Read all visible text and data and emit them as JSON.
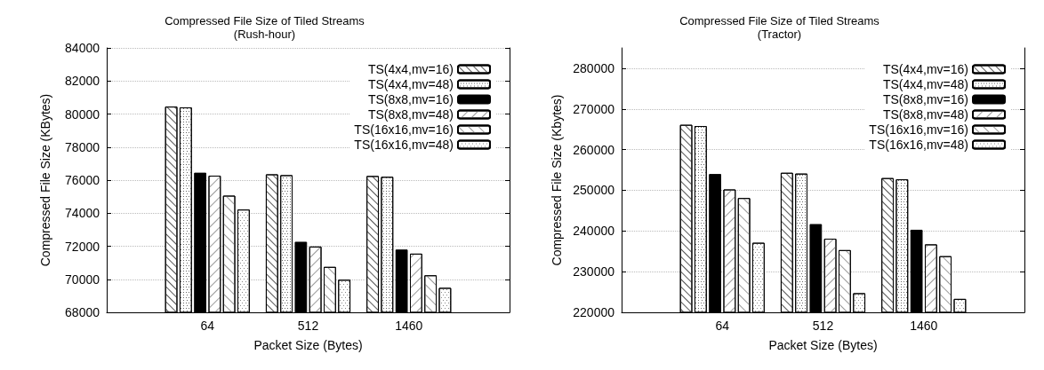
{
  "chart_data": [
    {
      "type": "bar",
      "title": "Compressed File Size of Tiled Streams",
      "subtitle": "(Rush-hour)",
      "xlabel": "Packet Size (Bytes)",
      "ylabel": "Compressed File Size (KBytes)",
      "categories": [
        null,
        "64",
        "512",
        "1460",
        null
      ],
      "series": [
        {
          "name": "TS(4x4,mv=16)",
          "color": "#ffffff",
          "values": [
            null,
            80450,
            76350,
            76250,
            null
          ]
        },
        {
          "name": "TS(4x4,mv=48)",
          "color": "#ffffff",
          "values": [
            null,
            80400,
            76300,
            76200,
            null
          ]
        },
        {
          "name": "TS(8x8,mv=16)",
          "color": "#000000",
          "values": [
            null,
            76450,
            72270,
            71800,
            null
          ]
        },
        {
          "name": "TS(8x8,mv=48)",
          "color": "#ffffff",
          "values": [
            null,
            76270,
            71980,
            71550,
            null
          ]
        },
        {
          "name": "TS(16x16,mv=16)",
          "color": "#ffffff",
          "values": [
            null,
            75060,
            70750,
            70240,
            null
          ]
        },
        {
          "name": "TS(16x16,mv=48)",
          "color": "#ffffff",
          "values": [
            null,
            74220,
            69970,
            69480,
            null
          ]
        }
      ],
      "ylim": [
        68000,
        84000
      ],
      "yticks": [
        68000,
        70000,
        72000,
        74000,
        76000,
        78000,
        80000,
        82000,
        84000
      ],
      "grid": "y",
      "legend": "top right"
    },
    {
      "type": "bar",
      "title": "Compressed File Size of Tiled Streams",
      "subtitle": "(Tractor)",
      "xlabel": "Packet Size (Bytes)",
      "ylabel": "Compressed File Size (Kbytes)",
      "categories": [
        null,
        "64",
        "512",
        "1460",
        null
      ],
      "series": [
        {
          "name": "TS(4x4,mv=16)",
          "color": "#ffffff",
          "values": [
            null,
            266100,
            254300,
            253000,
            null
          ]
        },
        {
          "name": "TS(4x4,mv=48)",
          "color": "#ffffff",
          "values": [
            null,
            265800,
            254100,
            252700,
            null
          ]
        },
        {
          "name": "TS(8x8,mv=16)",
          "color": "#000000",
          "values": [
            null,
            254000,
            241700,
            240300,
            null
          ]
        },
        {
          "name": "TS(8x8,mv=48)",
          "color": "#ffffff",
          "values": [
            null,
            250200,
            238100,
            236700,
            null
          ]
        },
        {
          "name": "TS(16x16,mv=16)",
          "color": "#ffffff",
          "values": [
            null,
            248100,
            235300,
            233800,
            null
          ]
        },
        {
          "name": "TS(16x16,mv=48)",
          "color": "#ffffff",
          "values": [
            null,
            237100,
            224700,
            223300,
            null
          ]
        }
      ],
      "ylim": [
        220000,
        285000
      ],
      "yticks": [
        220000,
        230000,
        240000,
        250000,
        260000,
        270000,
        280000
      ],
      "grid": "y",
      "legend": "top right"
    }
  ]
}
